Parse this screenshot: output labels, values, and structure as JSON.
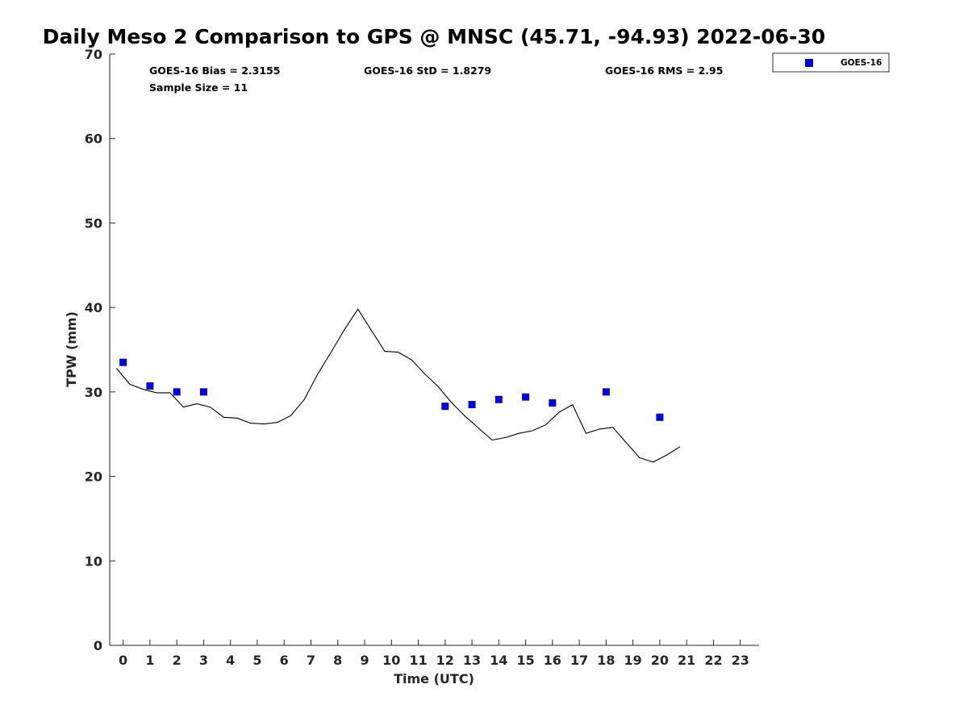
{
  "chart_data": {
    "type": "scatter",
    "title": "Daily Meso 2 Comparison to GPS @ MNSC (45.71, -94.93) 2022-06-30",
    "xlabel": "Time (UTC)",
    "ylabel": "TPW (mm)",
    "xlim": [
      -0.5,
      23.7
    ],
    "ylim": [
      0,
      70
    ],
    "xticks": [
      0,
      1,
      2,
      3,
      4,
      5,
      6,
      7,
      8,
      9,
      10,
      11,
      12,
      13,
      14,
      15,
      16,
      17,
      18,
      19,
      20,
      21,
      22,
      23
    ],
    "yticks": [
      0,
      10,
      20,
      30,
      40,
      50,
      60,
      70
    ],
    "grid": false,
    "legend_position": "outside-top-right",
    "stats": {
      "bias": "GOES-16 Bias = 2.3155",
      "std": "GOES-16 StD = 1.8279",
      "rms": "GOES-16 RMS = 2.95",
      "sample": "Sample Size = 11"
    },
    "gps_line": {
      "color": "#000000",
      "x": [
        -0.25,
        0.25,
        0.75,
        1.25,
        1.75,
        2.25,
        2.75,
        3.25,
        3.75,
        4.25,
        4.75,
        5.25,
        5.75,
        6.25,
        6.75,
        7.25,
        7.75,
        8.25,
        8.75,
        9.25,
        9.75,
        10.25,
        10.75,
        11.25,
        11.75,
        12.25,
        12.75,
        13.25,
        13.75,
        14.25,
        14.75,
        15.25,
        15.75,
        16.25,
        16.75,
        17.25,
        17.75,
        18.25,
        18.75,
        19.25,
        19.75,
        20.25,
        20.75
      ],
      "y": [
        32.8,
        30.9,
        30.3,
        29.9,
        29.9,
        28.2,
        28.6,
        28.2,
        27.0,
        26.9,
        26.3,
        26.2,
        26.4,
        27.2,
        29.1,
        32.1,
        34.7,
        37.4,
        39.8,
        37.3,
        34.8,
        34.7,
        33.8,
        32.1,
        30.6,
        28.7,
        27.1,
        25.7,
        24.3,
        24.6,
        25.1,
        25.4,
        26.1,
        27.6,
        28.5,
        25.1,
        25.6,
        25.8,
        24.0,
        22.2,
        21.7,
        22.5,
        23.5
      ]
    },
    "series": [
      {
        "name": "GOES-16",
        "color": "#0000e0",
        "x": [
          0,
          1,
          2,
          3,
          12,
          13,
          14,
          15,
          16,
          18,
          20
        ],
        "y": [
          33.5,
          30.7,
          30.0,
          30.0,
          28.3,
          28.5,
          29.1,
          29.4,
          28.7,
          30.0,
          27.0
        ]
      }
    ]
  }
}
